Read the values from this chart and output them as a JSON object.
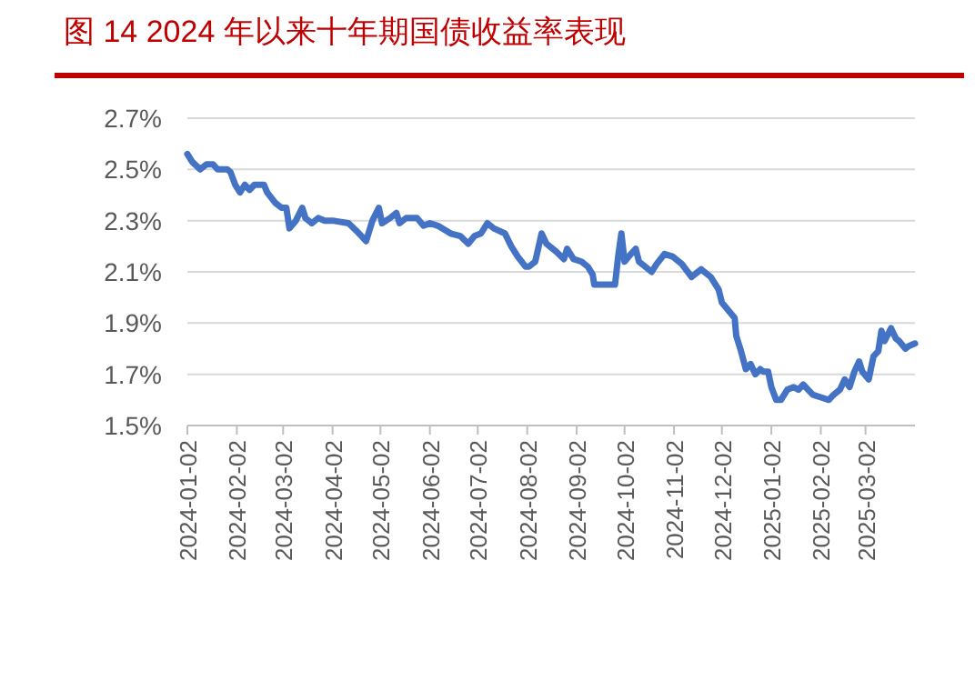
{
  "chart_data": {
    "type": "line",
    "title": "图 14 2024 年以来十年期国债收益率表现",
    "x": [
      "2024-01-02",
      "2024-01-05",
      "2024-01-10",
      "2024-01-14",
      "2024-01-18",
      "2024-01-21",
      "2024-01-27",
      "2024-01-29",
      "2024-02-01",
      "2024-02-04",
      "2024-02-07",
      "2024-02-10",
      "2024-02-13",
      "2024-02-19",
      "2024-02-21",
      "2024-02-26",
      "2024-03-01",
      "2024-03-04",
      "2024-03-06",
      "2024-03-10",
      "2024-03-14",
      "2024-03-16",
      "2024-03-20",
      "2024-03-24",
      "2024-03-28",
      "2024-04-02",
      "2024-04-12",
      "2024-04-17",
      "2024-04-23",
      "2024-04-27",
      "2024-05-01",
      "2024-05-03",
      "2024-05-08",
      "2024-05-12",
      "2024-05-14",
      "2024-05-18",
      "2024-05-25",
      "2024-05-29",
      "2024-06-02",
      "2024-06-07",
      "2024-06-15",
      "2024-06-21",
      "2024-06-26",
      "2024-06-30",
      "2024-07-04",
      "2024-07-08",
      "2024-07-12",
      "2024-07-19",
      "2024-07-23",
      "2024-07-27",
      "2024-08-01",
      "2024-08-03",
      "2024-08-07",
      "2024-08-11",
      "2024-08-14",
      "2024-08-20",
      "2024-08-25",
      "2024-08-27",
      "2024-08-31",
      "2024-09-05",
      "2024-09-09",
      "2024-09-12",
      "2024-09-13",
      "2024-09-26",
      "2024-09-28",
      "2024-09-30",
      "2024-10-02",
      "2024-10-06",
      "2024-10-09",
      "2024-10-11",
      "2024-10-15",
      "2024-10-19",
      "2024-10-22",
      "2024-10-27",
      "2024-11-01",
      "2024-11-07",
      "2024-11-13",
      "2024-11-19",
      "2024-11-25",
      "2024-11-30",
      "2024-12-02",
      "2024-12-06",
      "2024-12-10",
      "2024-12-11",
      "2024-12-14",
      "2024-12-17",
      "2024-12-20",
      "2024-12-23",
      "2024-12-26",
      "2024-12-28",
      "2024-12-31",
      "2025-01-02",
      "2025-01-05",
      "2025-01-08",
      "2025-01-12",
      "2025-01-16",
      "2025-01-19",
      "2025-01-22",
      "2025-01-25",
      "2025-01-28",
      "2025-02-02",
      "2025-02-07",
      "2025-02-10",
      "2025-02-14",
      "2025-02-17",
      "2025-02-20",
      "2025-02-23",
      "2025-02-26",
      "2025-02-28",
      "2025-03-04",
      "2025-03-07",
      "2025-03-10",
      "2025-03-12",
      "2025-03-14",
      "2025-03-18",
      "2025-03-21",
      "2025-03-23",
      "2025-03-27",
      "2025-03-29",
      "2025-04-02"
    ],
    "series": [
      {
        "color": "#4472c4",
        "values": [
          2.56,
          2.53,
          2.5,
          2.52,
          2.52,
          2.5,
          2.5,
          2.49,
          2.44,
          2.41,
          2.44,
          2.42,
          2.44,
          2.44,
          2.41,
          2.37,
          2.35,
          2.35,
          2.27,
          2.3,
          2.35,
          2.31,
          2.29,
          2.31,
          2.3,
          2.3,
          2.29,
          2.26,
          2.22,
          2.3,
          2.35,
          2.29,
          2.31,
          2.33,
          2.29,
          2.31,
          2.31,
          2.28,
          2.29,
          2.28,
          2.25,
          2.24,
          2.21,
          2.24,
          2.25,
          2.29,
          2.27,
          2.25,
          2.2,
          2.16,
          2.12,
          2.12,
          2.14,
          2.25,
          2.21,
          2.18,
          2.15,
          2.19,
          2.15,
          2.14,
          2.12,
          2.09,
          2.05,
          2.05,
          2.16,
          2.25,
          2.14,
          2.17,
          2.19,
          2.14,
          2.12,
          2.1,
          2.13,
          2.17,
          2.16,
          2.13,
          2.08,
          2.11,
          2.08,
          2.03,
          1.98,
          1.95,
          1.92,
          1.85,
          1.79,
          1.72,
          1.74,
          1.7,
          1.72,
          1.71,
          1.71,
          1.65,
          1.6,
          1.6,
          1.64,
          1.65,
          1.64,
          1.66,
          1.64,
          1.62,
          1.61,
          1.6,
          1.62,
          1.64,
          1.68,
          1.65,
          1.71,
          1.75,
          1.71,
          1.68,
          1.77,
          1.79,
          1.87,
          1.83,
          1.88,
          1.84,
          1.83,
          1.8,
          1.81,
          1.82
        ]
      }
    ],
    "xlim": [
      "2024-01-02",
      "2025-04-02"
    ],
    "xticks": [
      {
        "value": "2024-01-02",
        "label": "2024-01-02"
      },
      {
        "value": "2024-02-02",
        "label": "2024-02-02"
      },
      {
        "value": "2024-03-02",
        "label": "2024-03-02"
      },
      {
        "value": "2024-04-02",
        "label": "2024-04-02"
      },
      {
        "value": "2024-05-02",
        "label": "2024-05-02"
      },
      {
        "value": "2024-06-02",
        "label": "2024-06-02"
      },
      {
        "value": "2024-07-02",
        "label": "2024-07-02"
      },
      {
        "value": "2024-08-02",
        "label": "2024-08-02"
      },
      {
        "value": "2024-09-02",
        "label": "2024-09-02"
      },
      {
        "value": "2024-10-02",
        "label": "2024-10-02"
      },
      {
        "value": "2024-11-02",
        "label": "2024-11-02"
      },
      {
        "value": "2024-12-02",
        "label": "2024-12-02"
      },
      {
        "value": "2025-01-02",
        "label": "2025-01-02"
      },
      {
        "value": "2025-02-02",
        "label": "2025-02-02"
      },
      {
        "value": "2025-03-02",
        "label": "2025-03-02"
      }
    ],
    "ylim": [
      1.5,
      2.7
    ],
    "yticks": [
      {
        "value": 1.5,
        "label": "1.5%"
      },
      {
        "value": 1.7,
        "label": "1.7%"
      },
      {
        "value": 1.9,
        "label": "1.9%"
      },
      {
        "value": 2.1,
        "label": "2.1%"
      },
      {
        "value": 2.3,
        "label": "2.3%"
      },
      {
        "value": 2.5,
        "label": "2.5%"
      },
      {
        "value": 2.7,
        "label": "2.7%"
      }
    ],
    "grid": "y",
    "marker": "none",
    "line_style": "solid"
  }
}
